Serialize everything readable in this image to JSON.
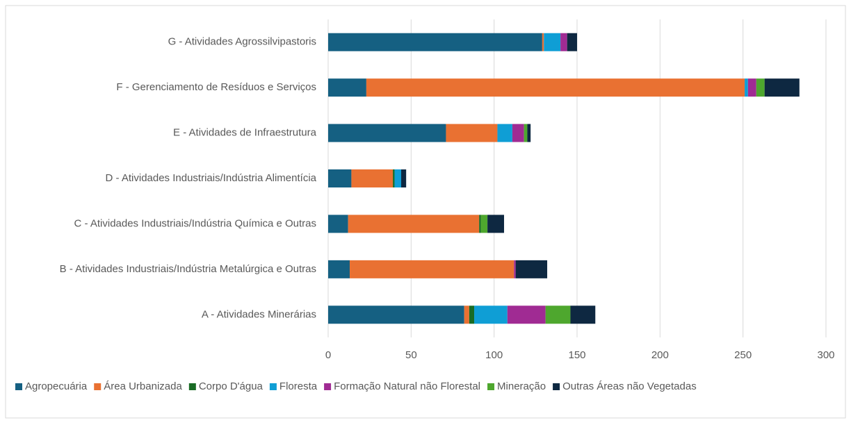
{
  "chart_data": {
    "type": "stacked-bar-horizontal",
    "categories": [
      "A - Atividades Minerárias",
      "B - Atividades Industriais/Indústria Metalúrgica e Outras",
      "C - Atividades Industriais/Indústria Química e Outras",
      "D - Atividades Industriais/Indústria Alimentícia",
      "E - Atividades de Infraestrutura",
      "F - Gerenciamento de Resíduos e Serviços",
      "G - Atividades Agrossilvipastoris"
    ],
    "series": [
      {
        "name": "Agropecuária",
        "color": "#156082",
        "values": [
          82,
          13,
          12,
          14,
          71,
          23,
          129
        ]
      },
      {
        "name": "Área Urbanizada",
        "color": "#e97132",
        "values": [
          3,
          99,
          79,
          25,
          31,
          228,
          1
        ]
      },
      {
        "name": "Corpo D'água",
        "color": "#196b24",
        "values": [
          3,
          0,
          1,
          1,
          0,
          0,
          0
        ]
      },
      {
        "name": "Floresta",
        "color": "#0f9ed5",
        "values": [
          20,
          0,
          0,
          4,
          9,
          2,
          10
        ]
      },
      {
        "name": "Formação Natural não Florestal",
        "color": "#a02b93",
        "values": [
          23,
          1,
          0,
          0,
          7,
          5,
          4
        ]
      },
      {
        "name": "Mineração",
        "color": "#4ea72e",
        "values": [
          15,
          0,
          4,
          0,
          2,
          5,
          0
        ]
      },
      {
        "name": "Outras Áreas não Vegetadas",
        "color": "#0e2841",
        "values": [
          15,
          19,
          10,
          3,
          2,
          21,
          6
        ]
      }
    ],
    "xlim": [
      0,
      300
    ],
    "xticks": [
      0,
      50,
      100,
      150,
      200,
      250,
      300
    ],
    "grid": true,
    "legend": "bottom"
  }
}
